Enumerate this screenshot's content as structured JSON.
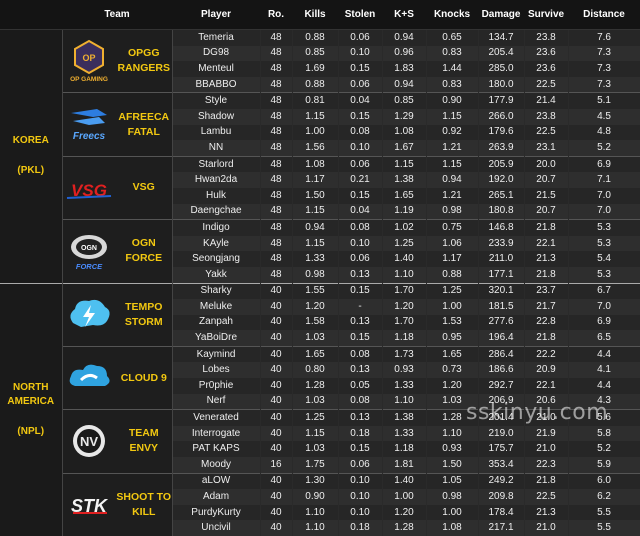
{
  "headers": [
    "Team",
    "Player",
    "Ro.",
    "Kills",
    "Stolen",
    "K+S",
    "Knocks",
    "Damage",
    "Survive",
    "Distance"
  ],
  "watermark": "sskinyu.com",
  "regions": [
    {
      "name": "KOREA",
      "code": "(PKL)",
      "teams": [
        {
          "name": "OPGG RANGERS",
          "logo": "opgg-rangers-logo",
          "logo_text": "OP",
          "logo_sub": "OP GAMING",
          "players": [
            [
              "Temeria",
              "48",
              "0.88",
              "0.06",
              "0.94",
              "0.65",
              "134.7",
              "23.8",
              "7.6"
            ],
            [
              "DG98",
              "48",
              "0.85",
              "0.10",
              "0.96",
              "0.83",
              "205.4",
              "23.6",
              "7.3"
            ],
            [
              "Menteul",
              "48",
              "1.69",
              "0.15",
              "1.83",
              "1.44",
              "285.0",
              "23.6",
              "7.3"
            ],
            [
              "BBABBO",
              "48",
              "0.88",
              "0.06",
              "0.94",
              "0.83",
              "180.0",
              "22.5",
              "7.3"
            ]
          ]
        },
        {
          "name": "AFREECA FATAL",
          "logo": "afreeca-freecs-logo",
          "logo_text": "Freecs",
          "logo_sub": "",
          "players": [
            [
              "Style",
              "48",
              "0.81",
              "0.04",
              "0.85",
              "0.90",
              "177.9",
              "21.4",
              "5.1"
            ],
            [
              "Shadow",
              "48",
              "1.15",
              "0.15",
              "1.29",
              "1.15",
              "266.0",
              "23.8",
              "4.5"
            ],
            [
              "Lambu",
              "48",
              "1.00",
              "0.08",
              "1.08",
              "0.92",
              "179.6",
              "22.5",
              "4.8"
            ],
            [
              "NN",
              "48",
              "1.56",
              "0.10",
              "1.67",
              "1.21",
              "263.9",
              "23.1",
              "5.2"
            ]
          ]
        },
        {
          "name": "VSG",
          "logo": "vsg-logo",
          "logo_text": "VSG",
          "logo_sub": "",
          "players": [
            [
              "Starlord",
              "48",
              "1.08",
              "0.06",
              "1.15",
              "1.15",
              "205.9",
              "20.0",
              "6.9"
            ],
            [
              "Hwan2da",
              "48",
              "1.17",
              "0.21",
              "1.38",
              "0.94",
              "192.0",
              "20.7",
              "7.1"
            ],
            [
              "Hulk",
              "48",
              "1.50",
              "0.15",
              "1.65",
              "1.21",
              "265.1",
              "21.5",
              "7.0"
            ],
            [
              "Daengchae",
              "48",
              "1.15",
              "0.04",
              "1.19",
              "0.98",
              "180.8",
              "20.7",
              "7.0"
            ]
          ]
        },
        {
          "name": "OGN FORCE",
          "logo": "ogn-force-logo",
          "logo_text": "OGN",
          "logo_sub": "FORCE",
          "players": [
            [
              "Indigo",
              "48",
              "0.94",
              "0.08",
              "1.02",
              "0.75",
              "146.8",
              "21.8",
              "5.3"
            ],
            [
              "KAyle",
              "48",
              "1.15",
              "0.10",
              "1.25",
              "1.06",
              "233.9",
              "22.1",
              "5.3"
            ],
            [
              "Seongjang",
              "48",
              "1.33",
              "0.06",
              "1.40",
              "1.17",
              "211.0",
              "21.3",
              "5.4"
            ],
            [
              "Yakk",
              "48",
              "0.98",
              "0.13",
              "1.10",
              "0.88",
              "177.1",
              "21.8",
              "5.3"
            ]
          ]
        }
      ]
    },
    {
      "name": "NORTH AMERICA",
      "code": "(NPL)",
      "teams": [
        {
          "name": "TEMPO STORM",
          "logo": "tempo-storm-logo",
          "logo_text": "",
          "logo_sub": "",
          "players": [
            [
              "Sharky",
              "40",
              "1.55",
              "0.15",
              "1.70",
              "1.25",
              "320.1",
              "23.7",
              "6.7"
            ],
            [
              "Meluke",
              "40",
              "1.20",
              "-",
              "1.20",
              "1.00",
              "181.5",
              "21.7",
              "7.0"
            ],
            [
              "Zanpah",
              "40",
              "1.58",
              "0.13",
              "1.70",
              "1.53",
              "277.6",
              "22.8",
              "6.9"
            ],
            [
              "YaBoiDre",
              "40",
              "1.03",
              "0.15",
              "1.18",
              "0.95",
              "196.4",
              "21.8",
              "6.5"
            ]
          ]
        },
        {
          "name": "CLOUD 9",
          "logo": "cloud9-logo",
          "logo_text": "",
          "logo_sub": "",
          "players": [
            [
              "Kaymind",
              "40",
              "1.65",
              "0.08",
              "1.73",
              "1.65",
              "286.4",
              "22.2",
              "4.4"
            ],
            [
              "Lobes",
              "40",
              "0.80",
              "0.13",
              "0.93",
              "0.73",
              "186.6",
              "20.9",
              "4.1"
            ],
            [
              "Pr0phie",
              "40",
              "1.28",
              "0.05",
              "1.33",
              "1.20",
              "292.7",
              "22.1",
              "4.4"
            ],
            [
              "Nerf",
              "40",
              "1.03",
              "0.08",
              "1.10",
              "1.03",
              "206.9",
              "20.6",
              "4.3"
            ]
          ]
        },
        {
          "name": "TEAM ENVY",
          "logo": "team-envy-logo",
          "logo_text": "NV",
          "logo_sub": "",
          "players": [
            [
              "Venerated",
              "40",
              "1.25",
              "0.13",
              "1.38",
              "1.28",
              "201.4",
              "21.0",
              "5.6"
            ],
            [
              "Interrogate",
              "40",
              "1.15",
              "0.18",
              "1.33",
              "1.10",
              "219.0",
              "21.9",
              "5.8"
            ],
            [
              "PAT KAPS",
              "40",
              "1.03",
              "0.15",
              "1.18",
              "0.93",
              "175.7",
              "21.0",
              "5.2"
            ],
            [
              "Moody",
              "16",
              "1.75",
              "0.06",
              "1.81",
              "1.50",
              "353.4",
              "22.3",
              "5.9"
            ]
          ]
        },
        {
          "name": "SHOOT TO KILL",
          "logo": "shoot-to-kill-logo",
          "logo_text": "STK",
          "logo_sub": "",
          "players": [
            [
              "aLOW",
              "40",
              "1.30",
              "0.10",
              "1.40",
              "1.05",
              "249.2",
              "21.8",
              "6.0"
            ],
            [
              "Adam",
              "40",
              "0.90",
              "0.10",
              "1.00",
              "0.98",
              "209.8",
              "22.5",
              "6.2"
            ],
            [
              "PurdyKurty",
              "40",
              "1.10",
              "0.10",
              "1.20",
              "1.00",
              "178.4",
              "21.3",
              "5.5"
            ],
            [
              "Uncivil",
              "40",
              "1.10",
              "0.18",
              "1.28",
              "1.08",
              "217.1",
              "21.0",
              "5.5"
            ]
          ]
        }
      ]
    }
  ]
}
